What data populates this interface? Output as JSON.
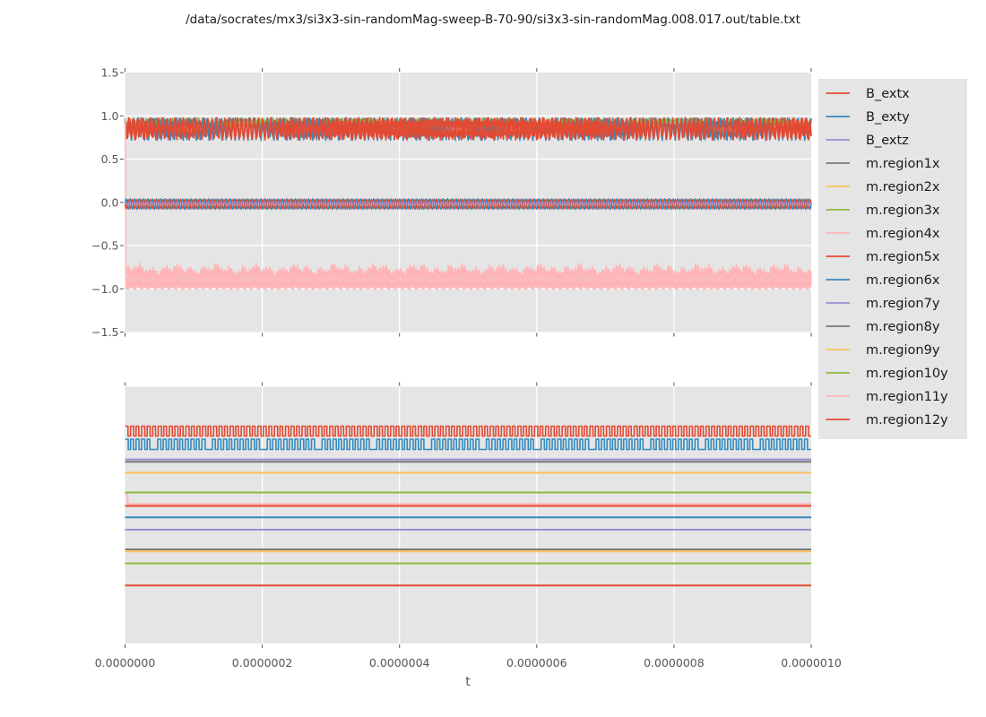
{
  "chart_data": {
    "type": "line",
    "title": "/data/socrates/mx3/si3x3-sin-randomMag-sweep-B-70-90/si3x3-sin-randomMag.008.017.out/table.txt",
    "xlabel": "t",
    "x_range": [
      0,
      1e-06
    ],
    "x_tick_labels": [
      "0.0000000",
      "0.0000002",
      "0.0000004",
      "0.0000006",
      "0.0000008",
      "0.0000010"
    ],
    "grid": true,
    "legend_position": "right",
    "legend": [
      {
        "label": "B_extx",
        "color": "#E24A33"
      },
      {
        "label": "B_exty",
        "color": "#348ABD"
      },
      {
        "label": "B_extz",
        "color": "#988ED5"
      },
      {
        "label": "m.region1x",
        "color": "#777777"
      },
      {
        "label": "m.region2x",
        "color": "#FBC15E"
      },
      {
        "label": "m.region3x",
        "color": "#8EBA42"
      },
      {
        "label": "m.region4x",
        "color": "#FFB5B8"
      },
      {
        "label": "m.region5x",
        "color": "#E24A33"
      },
      {
        "label": "m.region6x",
        "color": "#348ABD"
      },
      {
        "label": "m.region7y",
        "color": "#988ED5"
      },
      {
        "label": "m.region8y",
        "color": "#777777"
      },
      {
        "label": "m.region9y",
        "color": "#FBC15E"
      },
      {
        "label": "m.region10y",
        "color": "#8EBA42"
      },
      {
        "label": "m.region11y",
        "color": "#FFB5B8"
      },
      {
        "label": "m.region12y",
        "color": "#E24A33"
      }
    ],
    "subplots": [
      {
        "id": "top",
        "ylim": [
          -1.5,
          1.5
        ],
        "y_tick_labels": [
          "1.5",
          "1.0",
          "0.5",
          "0.0",
          "−0.5",
          "−1.0",
          "−1.5"
        ],
        "y_ticks": [
          1.5,
          1.0,
          0.5,
          0.0,
          -0.5,
          -1.0,
          -1.5
        ],
        "series": [
          {
            "name": "m.region2x",
            "color": "#FBC15E",
            "shape": "sine",
            "center": 0.9,
            "amplitude": 0.04,
            "cycles": 167,
            "phase": 0.7,
            "samples": 600,
            "width": 1.3
          },
          {
            "name": "m.region1x",
            "color": "#777777",
            "shape": "sine",
            "center": 0.915,
            "amplitude": 0.06,
            "cycles": 149,
            "phase": 2.0,
            "samples": 560,
            "width": 1.6
          },
          {
            "name": "m.region3x",
            "color": "#8EBA42",
            "shape": "sine",
            "center": 0.925,
            "amplitude": 0.045,
            "cycles": 157,
            "phase": 2.6,
            "samples": 520,
            "width": 1.5
          },
          {
            "name": "m.region6x",
            "color": "#348ABD",
            "shape": "sine",
            "center": 0.845,
            "amplitude": 0.13,
            "cycles": 159,
            "phase": 1.8,
            "samples": 530,
            "width": 1.7
          },
          {
            "name": "B_extx",
            "color": "#E24A33",
            "shape": "sine",
            "center": 0.855,
            "amplitude": 0.115,
            "cycles": 165.5,
            "phase": 0.9,
            "samples": 570,
            "width": 1.7
          },
          {
            "name": "m.region5x",
            "color": "#E24A33",
            "shape": "sine",
            "center": 0.85,
            "amplitude": 0.128,
            "cycles": 164,
            "phase": 2.4,
            "samples": 555,
            "width": 1.7
          },
          {
            "name": "m.region4x",
            "color": "#FFB5B8",
            "shape": "spike",
            "center": -1.005,
            "amplitude": 0.31,
            "cycles": 200,
            "phase": 1.0,
            "samples": 900,
            "width": 1.5,
            "layers": 2,
            "start_value": 0.97
          },
          {
            "name": "B_exty",
            "color": "#348ABD",
            "shape": "sine",
            "center": -0.02,
            "amplitude": 0.062,
            "cycles": 158,
            "phase": 0.0,
            "samples": 1400,
            "width": 1.4
          },
          {
            "name": "m.region12y",
            "color": "#E24A33",
            "shape": "sine",
            "center": -0.02,
            "amplitude": 0.055,
            "cycles": 158,
            "phase": 3.1416,
            "samples": 1400,
            "width": 1.4
          },
          {
            "name": "B_extz",
            "color": "#988ED5",
            "shape": "sine",
            "center": -0.012,
            "amplitude": 0.012,
            "cycles": 158,
            "phase": 1.5,
            "samples": 1400,
            "width": 1.4
          }
        ]
      },
      {
        "id": "bottom",
        "y_tick_labels": [],
        "series": [
          {
            "name": "line-square-red",
            "color": "#E24A33",
            "shape": "square",
            "high_frac": 0.1536,
            "low_frac": 0.192,
            "cycles": 124,
            "phase": 0.0
          },
          {
            "name": "line-square-blue",
            "color": "#348ABD",
            "shape": "square",
            "high_frac": 0.2042,
            "low_frac": 0.2443,
            "cycles": 124,
            "phase": 1.3,
            "notch": 9
          },
          {
            "name": "line-purple-1",
            "color": "#988ED5",
            "shape": "flat",
            "level_frac": 0.283
          },
          {
            "name": "line-gray-1",
            "color": "#777777",
            "shape": "flat",
            "level_frac": 0.2922
          },
          {
            "name": "line-orange-1",
            "color": "#FBC15E",
            "shape": "flat",
            "level_frac": 0.335
          },
          {
            "name": "line-green-1",
            "color": "#8EBA42",
            "shape": "flat",
            "level_frac": 0.412
          },
          {
            "name": "line-pink-1",
            "color": "#FFB5B8",
            "shape": "flat",
            "level_frac": 0.457,
            "start_frac": 0.419
          },
          {
            "name": "line-red-1",
            "color": "#E24A33",
            "shape": "flat",
            "level_frac": 0.464
          },
          {
            "name": "line-blue-1",
            "color": "#348ABD",
            "shape": "flat",
            "level_frac": 0.5086
          },
          {
            "name": "line-purple-2",
            "color": "#988ED5",
            "shape": "flat",
            "level_frac": 0.5567
          },
          {
            "name": "line-gray-2",
            "color": "#777777",
            "shape": "flat",
            "level_frac": 0.6335
          },
          {
            "name": "line-orange-2",
            "color": "#FBC15E",
            "shape": "flat",
            "level_frac": 0.6412
          },
          {
            "name": "line-green-2",
            "color": "#8EBA42",
            "shape": "flat",
            "level_frac": 0.688
          },
          {
            "name": "line-red-2",
            "color": "#E24A33",
            "shape": "flat",
            "level_frac": 0.7738
          }
        ]
      }
    ],
    "colors": {
      "figure_background": "#ffffff",
      "panel_background": "#e5e5e5",
      "grid": "#ffffff",
      "tick": "#555555",
      "tick_label": "#555555",
      "title_text": "#1a1a1a",
      "legend_text": "#1a1a1a"
    }
  }
}
